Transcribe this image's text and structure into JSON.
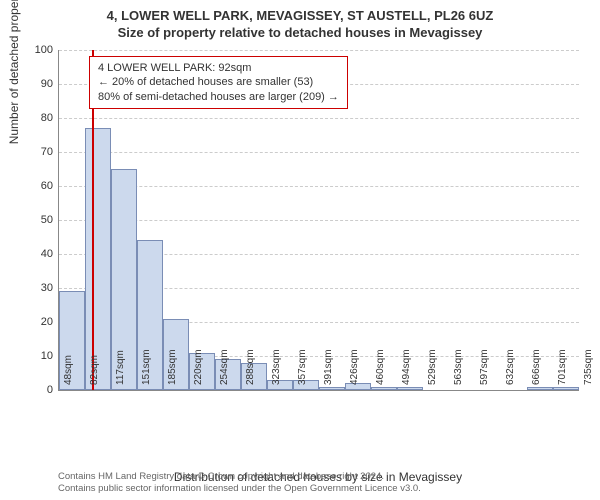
{
  "title_line1": "4, LOWER WELL PARK, MEVAGISSEY, ST AUSTELL, PL26 6UZ",
  "title_line2": "Size of property relative to detached houses in Mevagissey",
  "chart": {
    "type": "histogram",
    "y_label": "Number of detached properties",
    "x_label": "Distribution of detached houses by size in Mevagissey",
    "ylim": [
      0,
      100
    ],
    "ytick_step": 10,
    "y_ticks": [
      0,
      10,
      20,
      30,
      40,
      50,
      60,
      70,
      80,
      90,
      100
    ],
    "x_ticks": [
      "48sqm",
      "82sqm",
      "117sqm",
      "151sqm",
      "185sqm",
      "220sqm",
      "254sqm",
      "288sqm",
      "323sqm",
      "357sqm",
      "391sqm",
      "426sqm",
      "460sqm",
      "494sqm",
      "529sqm",
      "563sqm",
      "597sqm",
      "632sqm",
      "666sqm",
      "701sqm",
      "735sqm"
    ],
    "x_range": [
      48,
      735
    ],
    "bars": [
      {
        "x0": 48,
        "x1": 82,
        "h": 29
      },
      {
        "x0": 82,
        "x1": 117,
        "h": 77
      },
      {
        "x0": 117,
        "x1": 151,
        "h": 65
      },
      {
        "x0": 151,
        "x1": 185,
        "h": 44
      },
      {
        "x0": 185,
        "x1": 220,
        "h": 21
      },
      {
        "x0": 220,
        "x1": 254,
        "h": 11
      },
      {
        "x0": 254,
        "x1": 288,
        "h": 9
      },
      {
        "x0": 288,
        "x1": 323,
        "h": 8
      },
      {
        "x0": 323,
        "x1": 357,
        "h": 3
      },
      {
        "x0": 357,
        "x1": 391,
        "h": 3
      },
      {
        "x0": 391,
        "x1": 426,
        "h": 1
      },
      {
        "x0": 426,
        "x1": 460,
        "h": 2
      },
      {
        "x0": 460,
        "x1": 494,
        "h": 1
      },
      {
        "x0": 494,
        "x1": 529,
        "h": 1
      },
      {
        "x0": 666,
        "x1": 701,
        "h": 1
      },
      {
        "x0": 701,
        "x1": 735,
        "h": 1
      }
    ],
    "bar_fill": "#ccd9ed",
    "bar_border": "#7a8db5",
    "grid_color": "#cccccc",
    "background_color": "#ffffff",
    "marker": {
      "x": 92,
      "color": "#cc0000"
    },
    "annotation": {
      "line1": "4 LOWER WELL PARK: 92sqm",
      "line2": "← 20% of detached houses are smaller (53)",
      "line3": "80% of semi-detached houses are larger (209) →",
      "border_color": "#cc0000"
    }
  },
  "attribution": {
    "line1": "Contains HM Land Registry data © Crown copyright and database right 2024.",
    "line2": "Contains public sector information licensed under the Open Government Licence v3.0."
  }
}
